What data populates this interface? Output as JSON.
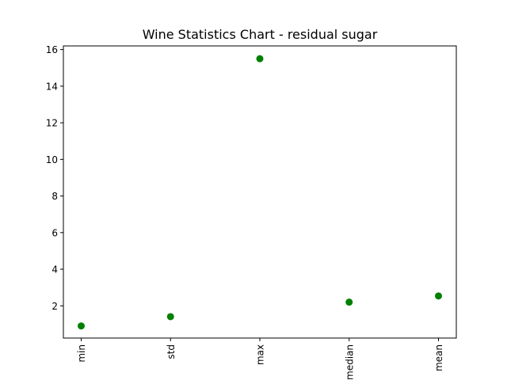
{
  "chart_data": {
    "type": "scatter",
    "title": "Wine Statistics Chart - residual sugar",
    "xlabel": "",
    "ylabel": "",
    "categories": [
      "min",
      "std",
      "max",
      "median",
      "mean"
    ],
    "values": [
      0.9,
      1.41,
      15.5,
      2.2,
      2.54
    ],
    "ylim": [
      0.24,
      16.2
    ],
    "yticks": [
      2,
      4,
      6,
      8,
      10,
      12,
      14,
      16
    ],
    "ytick_labels": [
      "2",
      "4",
      "6",
      "8",
      "10",
      "12",
      "14",
      "16"
    ],
    "marker_color": "#008000",
    "grid": false,
    "legend": "none"
  }
}
